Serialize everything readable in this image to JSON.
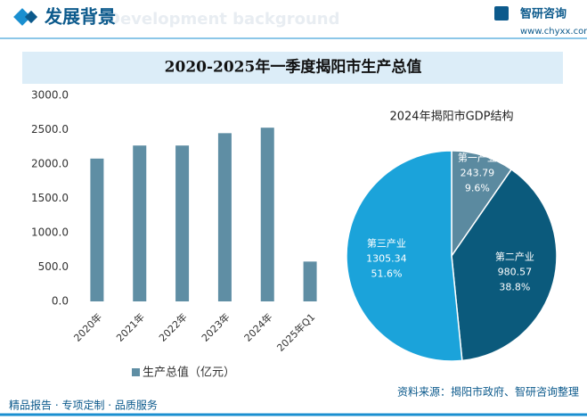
{
  "header": {
    "title": "发展背景",
    "subtitle": "Development background",
    "brand": "智研咨询",
    "url": "www.chyxx.com"
  },
  "main_title": "2020-2025年一季度揭阳市生产总值",
  "chart_data": [
    {
      "type": "bar",
      "categories": [
        "2020年",
        "2021年",
        "2022年",
        "2023年",
        "2024年",
        "2025年Q1"
      ],
      "series": [
        {
          "name": "生产总值（亿元）",
          "color": "#5f8ea4",
          "values": [
            2080,
            2270,
            2270,
            2450,
            2530,
            580
          ]
        }
      ],
      "ylim": [
        0,
        3000
      ],
      "yticks": [
        {
          "value": 0,
          "label": "0.0"
        },
        {
          "value": 500,
          "label": "500.0"
        },
        {
          "value": 1000,
          "label": "1000.0"
        },
        {
          "value": 1500,
          "label": "1500.0"
        },
        {
          "value": 2000,
          "label": "2000.0"
        },
        {
          "value": 2500,
          "label": "2500.0"
        },
        {
          "value": 3000,
          "label": "3000.0"
        }
      ],
      "legend": "bottom"
    },
    {
      "type": "pie",
      "title": "2024年揭阳市GDP结构",
      "categories": [
        "第一产业",
        "第二产业",
        "第三产业"
      ],
      "values": [
        243.79,
        980.57,
        1305.34
      ],
      "percents": [
        {
          "value": 9.6,
          "label": "9.6%"
        },
        {
          "value": 38.8,
          "label": "38.8%"
        },
        {
          "value": 51.6,
          "label": "51.6%"
        }
      ],
      "colors": [
        "#5b8aa0",
        "#0b5a7c",
        "#1ba3da"
      ]
    }
  ],
  "footer": {
    "left": "精品报告 · 专项定制 · 品质服务",
    "source": "资料来源：揭阳市政府、智研咨询整理"
  }
}
